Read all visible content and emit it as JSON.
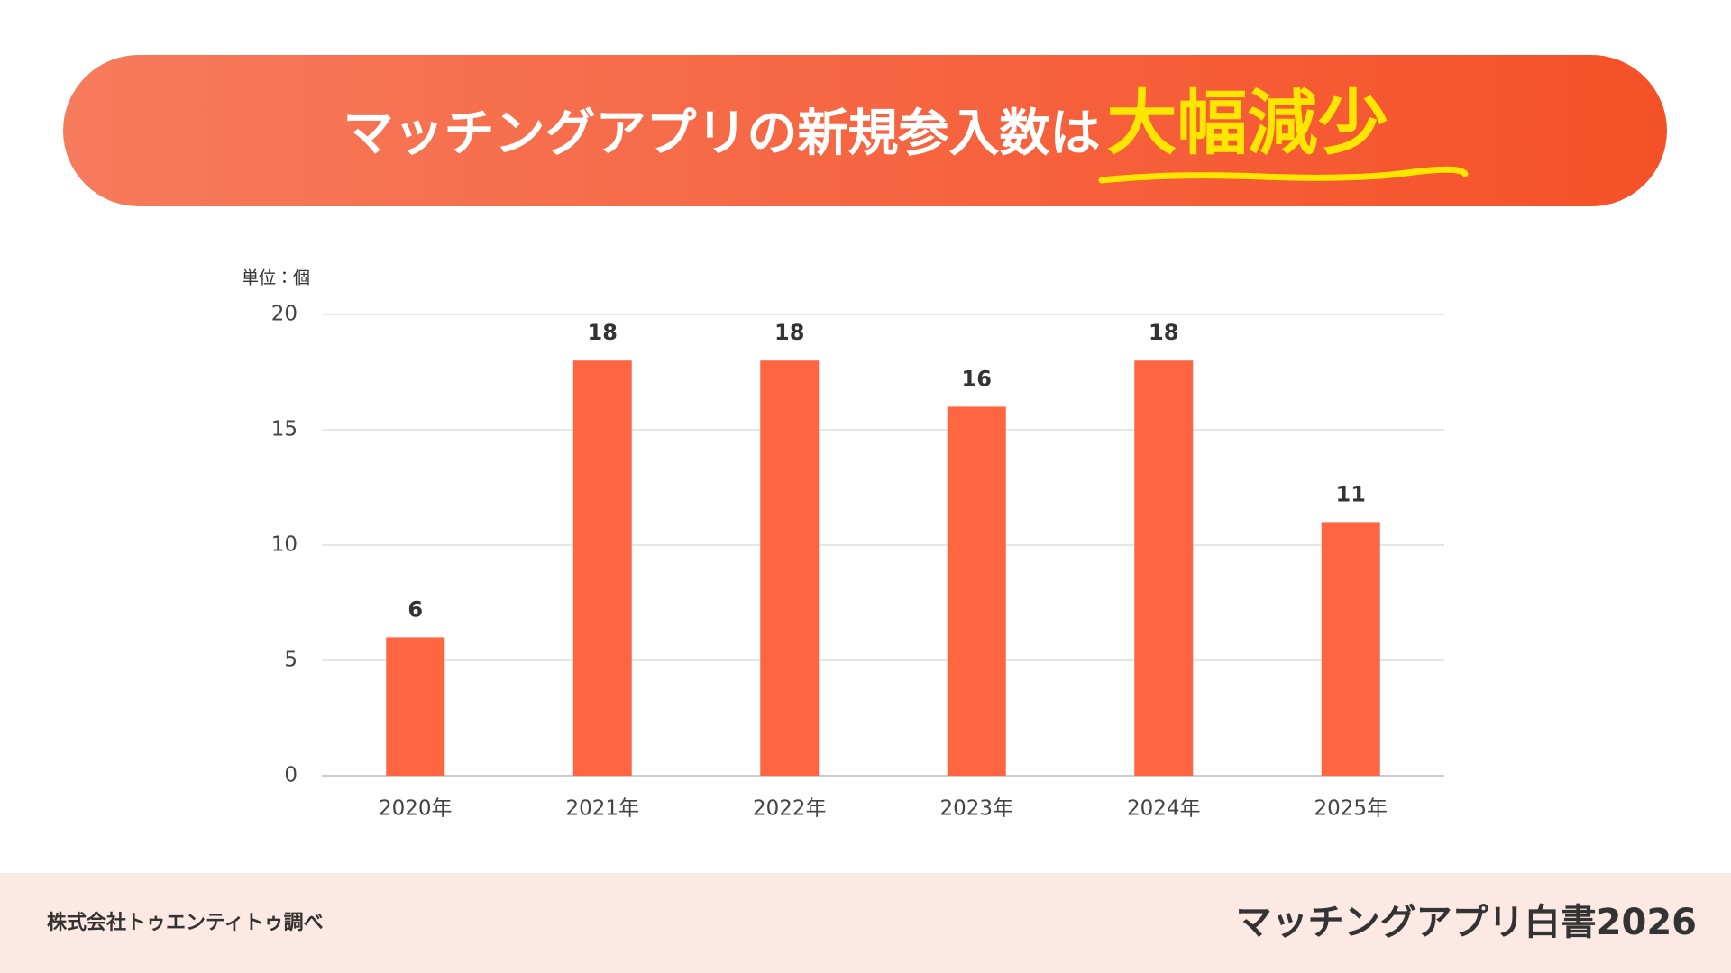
{
  "chart_data": {
    "type": "bar",
    "title": "マッチングアプリの新規参入数は",
    "title_highlight": "大幅減少",
    "unit_label": "単位：個",
    "categories": [
      "2020年",
      "2021年",
      "2022年",
      "2023年",
      "2024年",
      "2025年"
    ],
    "values": [
      6,
      18,
      18,
      16,
      18,
      11
    ],
    "color": "#fe6641",
    "ylim": [
      0,
      20
    ],
    "yticks": [
      0,
      5,
      10,
      15,
      20
    ],
    "grid": true
  },
  "footer": {
    "source": "株式会社トゥエンティトゥ調べ",
    "brand": "マッチングアプリ白書2026"
  }
}
